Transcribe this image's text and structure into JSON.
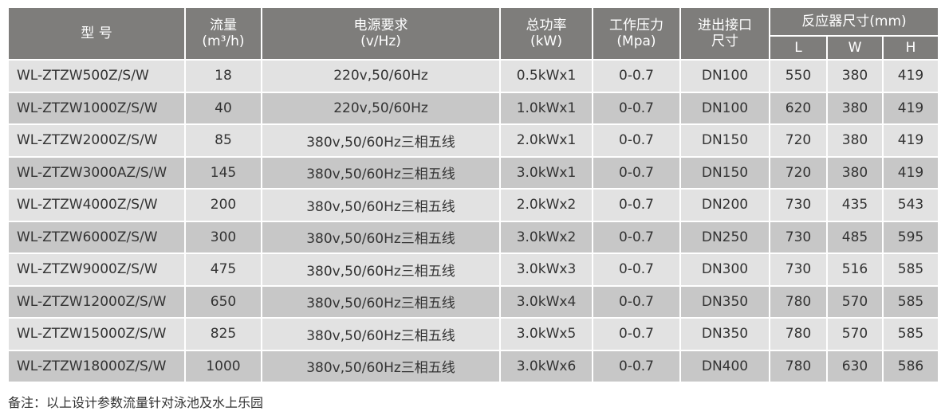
{
  "header": {
    "model": "型 号",
    "flow": "流量",
    "flow_unit": "(m³/h)",
    "power_req": "电源要求",
    "power_req_unit": "(v/Hz)",
    "total_power": "总功率",
    "total_power_unit": "(kW)",
    "pressure": "工作压力",
    "pressure_unit": "(Mpa)",
    "port": "进出接口",
    "port_unit": "尺寸",
    "reactor": "反应器尺寸(mm)",
    "L": "L",
    "W": "W",
    "H": "H"
  },
  "rows": [
    [
      "WL-ZTZW500Z/S/W",
      "18",
      "220v,50/60Hz",
      "0.5kWx1",
      "0-0.7",
      "DN100",
      "550",
      "380",
      "419"
    ],
    [
      "WL-ZTZW1000Z/S/W",
      "40",
      "220v,50/60Hz",
      "1.0kWx1",
      "0-0.7",
      "DN100",
      "620",
      "380",
      "419"
    ],
    [
      "WL-ZTZW2000Z/S/W",
      "85",
      "380v,50/60Hz三相五线",
      "2.0kWx1",
      "0-0.7",
      "DN150",
      "720",
      "380",
      "419"
    ],
    [
      "WL-ZTZW3000AZ/S/W",
      "145",
      "380v,50/60Hz三相五线",
      "3.0kWx1",
      "0-0.7",
      "DN150",
      "720",
      "380",
      "419"
    ],
    [
      "WL-ZTZW4000Z/S/W",
      "200",
      "380v,50/60Hz三相五线",
      "2.0kWx2",
      "0-0.7",
      "DN200",
      "730",
      "435",
      "543"
    ],
    [
      "WL-ZTZW6000Z/S/W",
      "300",
      "380v,50/60Hz三相五线",
      "3.0kWx2",
      "0-0.7",
      "DN250",
      "730",
      "485",
      "595"
    ],
    [
      "WL-ZTZW9000Z/S/W",
      "475",
      "380v,50/60Hz三相五线",
      "3.0kWx3",
      "0-0.7",
      "DN300",
      "730",
      "516",
      "585"
    ],
    [
      "WL-ZTZW12000Z/S/W",
      "650",
      "380v,50/60Hz三相五线",
      "3.0kWx4",
      "0-0.7",
      "DN350",
      "780",
      "570",
      "585"
    ],
    [
      "WL-ZTZW15000Z/S/W",
      "825",
      "380v,50/60Hz三相五线",
      "3.0kWx5",
      "0-0.7",
      "DN350",
      "780",
      "570",
      "585"
    ],
    [
      "WL-ZTZW18000Z/S/W",
      "1000",
      "380v,50/60Hz三相五线",
      "3.0kWx6",
      "0-0.7",
      "DN400",
      "780",
      "630",
      "586"
    ]
  ],
  "note": "备注：以上设计参数流量针对泳池及水上乐园",
  "colors": {
    "header_bg": "#7e7d7b",
    "row_light": "#e2e2e2",
    "row_dark": "#c7c7c7",
    "text": "#333333"
  }
}
